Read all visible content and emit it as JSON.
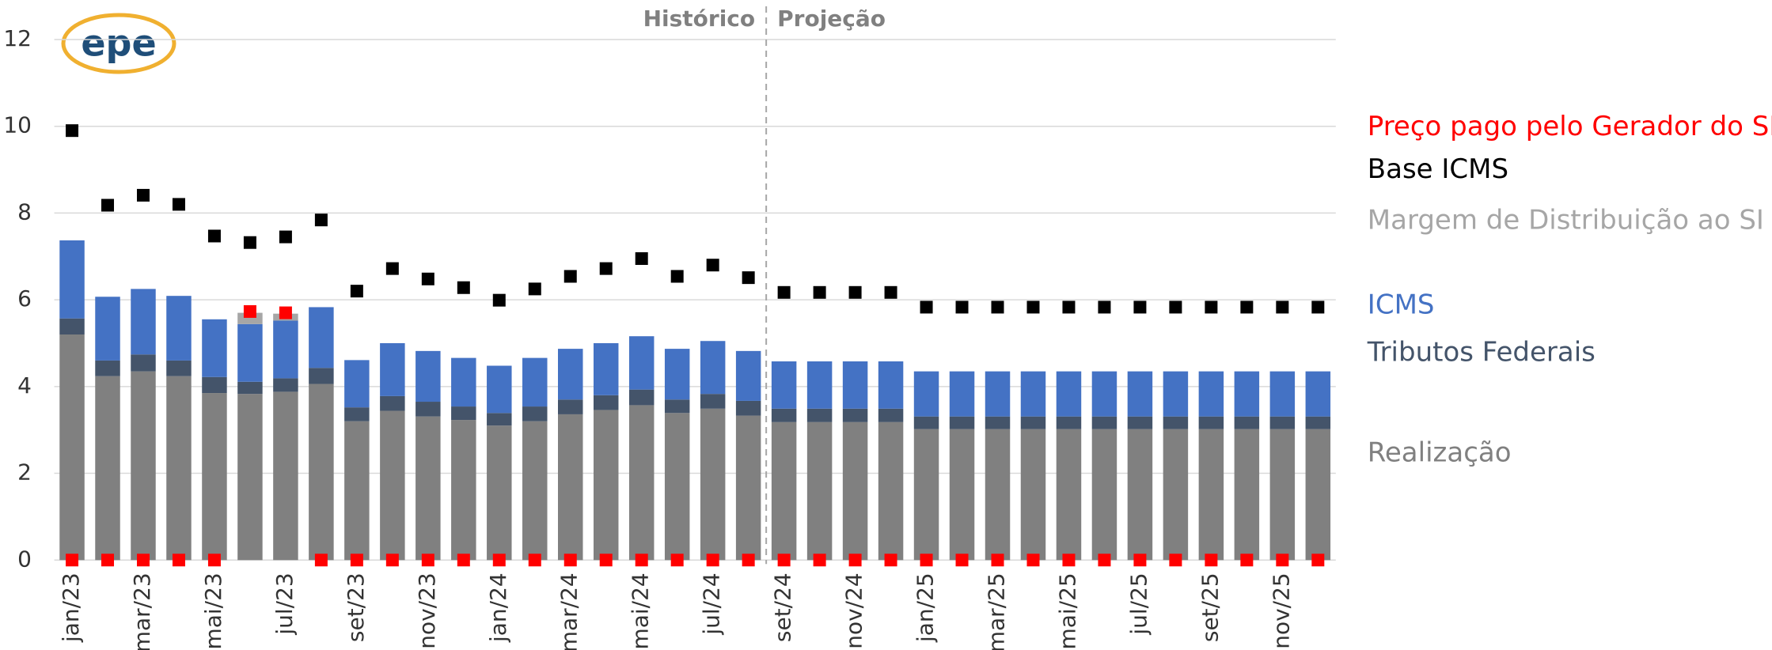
{
  "chart_data": {
    "type": "bar",
    "stacked": true,
    "logo": "epe",
    "annotations": [
      "Histórico",
      "Projeção"
    ],
    "categories": [
      "jan/23",
      null,
      "mar/23",
      null,
      "mai/23",
      null,
      "jul/23",
      null,
      "set/23",
      null,
      "nov/23",
      null,
      "jan/24",
      null,
      "mar/24",
      null,
      "mai/24",
      null,
      "jul/24",
      null,
      "set/24",
      null,
      "nov/24",
      null,
      "jan/25",
      null,
      "mar/25",
      null,
      "mai/25",
      null,
      "jul/25",
      null,
      "set/25",
      null,
      "nov/25",
      null
    ],
    "series": [
      {
        "name": "Preço pago pelo Gerador do SI",
        "type": "scatter",
        "color": "#ff0000",
        "values": [
          0,
          0,
          0,
          0,
          0,
          5.73,
          5.7,
          0,
          0,
          0,
          0,
          0,
          0,
          0,
          0,
          0,
          0,
          0,
          0,
          0,
          0,
          0,
          0,
          0,
          0,
          0,
          0,
          0,
          0,
          0,
          0,
          0,
          0,
          0,
          0,
          0
        ]
      },
      {
        "name": "Base ICMS",
        "type": "scatter",
        "color": "#000000",
        "values": [
          9.9,
          8.18,
          8.41,
          8.2,
          7.47,
          7.32,
          7.45,
          7.84,
          6.2,
          6.72,
          6.48,
          6.28,
          5.99,
          6.25,
          6.54,
          6.72,
          6.95,
          6.54,
          6.8,
          6.51,
          6.17,
          6.17,
          6.17,
          6.17,
          5.83,
          5.83,
          5.83,
          5.83,
          5.83,
          5.83,
          5.83,
          5.83,
          5.83,
          5.83,
          5.83,
          5.83
        ]
      },
      {
        "name": "Margem de Distribuição ao SI",
        "type": "bar",
        "color": "#a6a6a6",
        "values": [
          0,
          0,
          0,
          0,
          0,
          0.26,
          0.16,
          0,
          0,
          0,
          0,
          0,
          0,
          0,
          0,
          0,
          0,
          0,
          0,
          0,
          0,
          0,
          0,
          0,
          0,
          0,
          0,
          0,
          0,
          0,
          0,
          0,
          0,
          0,
          0,
          0
        ]
      },
      {
        "name": "ICMS",
        "type": "bar",
        "color": "#4472c4",
        "values": [
          1.8,
          1.47,
          1.51,
          1.49,
          1.33,
          1.33,
          1.33,
          1.4,
          1.09,
          1.22,
          1.17,
          1.12,
          1.09,
          1.12,
          1.17,
          1.2,
          1.23,
          1.17,
          1.22,
          1.15,
          1.09,
          1.09,
          1.09,
          1.09,
          1.04,
          1.04,
          1.04,
          1.04,
          1.04,
          1.04,
          1.04,
          1.04,
          1.04,
          1.04,
          1.04,
          1.04
        ]
      },
      {
        "name": "Tributos Federais",
        "type": "bar",
        "color": "#44546a",
        "values": [
          0.37,
          0.36,
          0.39,
          0.36,
          0.37,
          0.28,
          0.31,
          0.37,
          0.32,
          0.34,
          0.34,
          0.31,
          0.29,
          0.34,
          0.34,
          0.34,
          0.36,
          0.31,
          0.34,
          0.34,
          0.31,
          0.31,
          0.31,
          0.31,
          0.29,
          0.29,
          0.29,
          0.29,
          0.29,
          0.29,
          0.29,
          0.29,
          0.29,
          0.29,
          0.29,
          0.29
        ]
      },
      {
        "name": "Realização",
        "type": "bar",
        "color": "#808080",
        "values": [
          5.2,
          4.24,
          4.35,
          4.24,
          3.85,
          3.83,
          3.88,
          4.06,
          3.2,
          3.44,
          3.31,
          3.23,
          3.1,
          3.2,
          3.36,
          3.46,
          3.57,
          3.39,
          3.49,
          3.33,
          3.18,
          3.18,
          3.18,
          3.18,
          3.02,
          3.02,
          3.02,
          3.02,
          3.02,
          3.02,
          3.02,
          3.02,
          3.02,
          3.02,
          3.02,
          3.02
        ]
      }
    ],
    "ylim": [
      0,
      12
    ],
    "yticks": [
      0,
      2,
      4,
      6,
      8,
      10,
      12
    ],
    "grid": true,
    "legend": "right"
  }
}
